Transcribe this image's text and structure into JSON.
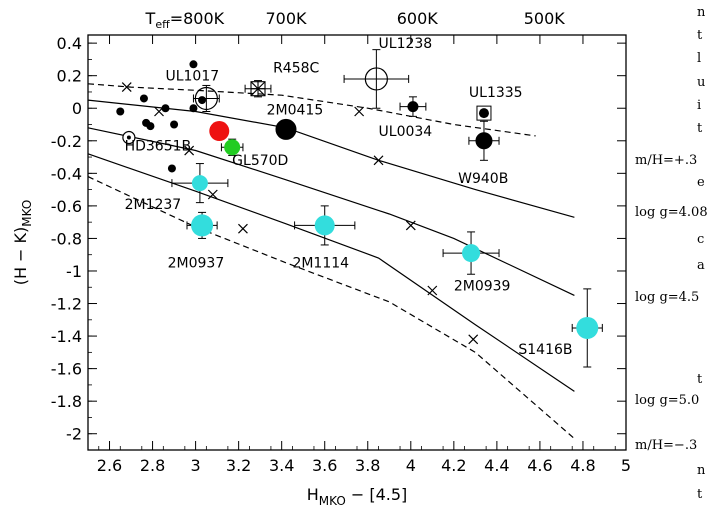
{
  "chart_data": {
    "type": "scatter",
    "xlabel": "H",
    "xlabel_sub": "MKO",
    "xlabel_tail": " − [4.5]",
    "ylabel": "(H − K)",
    "ylabel_sub": "MKO",
    "xlim": [
      2.5,
      5.0
    ],
    "ylim": [
      -2.1,
      0.45
    ],
    "x_ticks": [
      2.6,
      2.8,
      3.0,
      3.2,
      3.4,
      3.6,
      3.8,
      4.0,
      4.2,
      4.4,
      4.6,
      4.8,
      5.0
    ],
    "x_tick_labels": [
      "2.6",
      "2.8",
      "3",
      "3.2",
      "3.4",
      "3.6",
      "3.8",
      "4",
      "4.2",
      "4.4",
      "4.6",
      "4.8",
      "5"
    ],
    "y_ticks": [
      0.4,
      0.2,
      0,
      -0.2,
      -0.4,
      -0.6,
      -0.8,
      -1,
      -1.2,
      -1.4,
      -1.6,
      -1.8,
      -2
    ],
    "y_tick_labels": [
      "0.4",
      "0.2",
      "0",
      "-0.2",
      "-0.4",
      "-0.6",
      "-0.8",
      "-1",
      "-1.2",
      "-1.4",
      "-1.6",
      "-1.8",
      "-2"
    ],
    "top_axis": {
      "label_main": "T",
      "label_sub": "eff",
      "label_tail": "=800K",
      "ticks": [
        {
          "label": "700K",
          "x": 3.42
        },
        {
          "label": "600K",
          "x": 4.03
        },
        {
          "label": "500K",
          "x": 4.62
        }
      ],
      "first_label_x": 2.95
    },
    "model_curves": [
      {
        "style": "dashed",
        "points": [
          [
            2.5,
            0.15
          ],
          [
            2.7,
            0.13
          ],
          [
            3.0,
            0.11
          ],
          [
            3.4,
            0.08
          ],
          [
            3.8,
            0.0
          ],
          [
            4.2,
            -0.1
          ],
          [
            4.58,
            -0.17
          ]
        ]
      },
      {
        "style": "solid",
        "points": [
          [
            2.5,
            0.05
          ],
          [
            3.0,
            -0.02
          ],
          [
            3.42,
            -0.12
          ],
          [
            3.85,
            -0.32
          ],
          [
            4.3,
            -0.5
          ],
          [
            4.76,
            -0.67
          ]
        ]
      },
      {
        "style": "solid",
        "points": [
          [
            2.5,
            -0.12
          ],
          [
            3.0,
            -0.26
          ],
          [
            3.42,
            -0.44
          ],
          [
            3.9,
            -0.65
          ],
          [
            4.2,
            -0.8
          ],
          [
            4.76,
            -1.15
          ]
        ]
      },
      {
        "style": "solid",
        "points": [
          [
            2.5,
            -0.28
          ],
          [
            3.0,
            -0.51
          ],
          [
            3.42,
            -0.71
          ],
          [
            3.85,
            -0.92
          ],
          [
            4.3,
            -1.33
          ],
          [
            4.76,
            -1.74
          ]
        ]
      },
      {
        "style": "dashed",
        "points": [
          [
            2.5,
            -0.42
          ],
          [
            3.0,
            -0.73
          ],
          [
            3.42,
            -0.95
          ],
          [
            3.9,
            -1.19
          ],
          [
            4.3,
            -1.5
          ],
          [
            4.76,
            -2.03
          ]
        ]
      }
    ],
    "model_markers": [
      [
        2.68,
        0.13
      ],
      [
        2.83,
        -0.02
      ],
      [
        2.97,
        -0.26
      ],
      [
        3.08,
        -0.53
      ],
      [
        3.22,
        -0.74
      ],
      [
        3.76,
        -0.02
      ],
      [
        3.85,
        -0.32
      ],
      [
        4.0,
        -0.72
      ],
      [
        4.1,
        -1.12
      ],
      [
        4.29,
        -1.42
      ]
    ],
    "field_dots": [
      [
        2.65,
        -0.02
      ],
      [
        2.76,
        0.06
      ],
      [
        2.77,
        -0.09
      ],
      [
        2.79,
        -0.11
      ],
      [
        2.86,
        0.0
      ],
      [
        2.9,
        -0.1
      ],
      [
        2.89,
        -0.37
      ],
      [
        2.99,
        0.27
      ],
      [
        2.99,
        0.0
      ],
      [
        3.03,
        0.05
      ],
      [
        3.1,
        -0.13
      ]
    ],
    "objects": [
      {
        "name": "UL1017",
        "x": 3.05,
        "y": 0.06,
        "xerr": 0.06,
        "yerr": 0.08,
        "marker": "open-circle-large",
        "size": 11,
        "color": "#000000"
      },
      {
        "name": "HD3651B",
        "x": 2.69,
        "y": -0.18,
        "xerr": 0.0,
        "yerr": 0.0,
        "marker": "open-circle-dot",
        "size": 6,
        "color": "#000000"
      },
      {
        "name": "R458C",
        "x": 3.29,
        "y": 0.12,
        "xerr": 0.06,
        "yerr": 0.05,
        "marker": "asterisk-square",
        "size": 7,
        "color": "#000000"
      },
      {
        "name": "2M0415",
        "x": 3.42,
        "y": -0.13,
        "xerr": 0.04,
        "yerr": 0.03,
        "marker": "filled-circle",
        "size": 10,
        "color": "#000000"
      },
      {
        "name": "GL570D",
        "x": 3.17,
        "y": -0.24,
        "xerr": 0.05,
        "yerr": 0.05,
        "marker": "filled-circle",
        "size": 8,
        "color": "#22cc22"
      },
      {
        "name": "",
        "x": 3.11,
        "y": -0.14,
        "xerr": 0.04,
        "yerr": 0.05,
        "marker": "filled-circle",
        "size": 10,
        "color": "#ee1111"
      },
      {
        "name": "UL1238",
        "x": 3.84,
        "y": 0.18,
        "xerr": 0.15,
        "yerr": 0.18,
        "marker": "open-circle-large",
        "size": 11,
        "color": "#000000"
      },
      {
        "name": "UL0034",
        "x": 4.01,
        "y": 0.01,
        "xerr": 0.06,
        "yerr": 0.06,
        "marker": "filled-circle-small",
        "size": 5,
        "color": "#000000"
      },
      {
        "name": "UL1335",
        "x": 4.34,
        "y": -0.03,
        "xerr": 0.0,
        "yerr": 0.0,
        "marker": "filled-circle-square",
        "size": 5,
        "color": "#000000"
      },
      {
        "name": "W940B",
        "x": 4.34,
        "y": -0.2,
        "xerr": 0.07,
        "yerr": 0.12,
        "marker": "filled-circle",
        "size": 8,
        "color": "#000000"
      },
      {
        "name": "2M1237",
        "x": 3.02,
        "y": -0.46,
        "xerr": 0.13,
        "yerr": 0.12,
        "marker": "filled-circle",
        "size": 8,
        "color": "#33dddd"
      },
      {
        "name": "2M0937",
        "x": 3.03,
        "y": -0.72,
        "xerr": 0.07,
        "yerr": 0.08,
        "marker": "filled-circle",
        "size": 11,
        "color": "#33dddd"
      },
      {
        "name": "2M1114",
        "x": 3.6,
        "y": -0.72,
        "xerr": 0.14,
        "yerr": 0.12,
        "marker": "filled-circle",
        "size": 10,
        "color": "#33dddd"
      },
      {
        "name": "2M0939",
        "x": 4.28,
        "y": -0.89,
        "xerr": 0.13,
        "yerr": 0.13,
        "marker": "filled-circle",
        "size": 9,
        "color": "#33dddd"
      },
      {
        "name": "S1416B",
        "x": 4.82,
        "y": -1.35,
        "xerr": 0.07,
        "yerr": 0.24,
        "marker": "filled-circle",
        "size": 11,
        "color": "#33dddd"
      }
    ],
    "annotations": [
      {
        "text": "UL1017",
        "x": 2.86,
        "y": 0.17
      },
      {
        "text": "R458C",
        "x": 3.36,
        "y": 0.22
      },
      {
        "text": "UL1238",
        "x": 3.85,
        "y": 0.37
      },
      {
        "text": "UL1335",
        "x": 4.27,
        "y": 0.07
      },
      {
        "text": "2M0415",
        "x": 3.33,
        "y": -0.04
      },
      {
        "text": "UL0034",
        "x": 3.85,
        "y": -0.17
      },
      {
        "text": "HD3651B",
        "x": 2.67,
        "y": -0.26
      },
      {
        "text": "GL570D",
        "x": 3.17,
        "y": -0.35
      },
      {
        "text": "W940B",
        "x": 4.22,
        "y": -0.46
      },
      {
        "text": "2M1237",
        "x": 2.67,
        "y": -0.62
      },
      {
        "text": "2M0937",
        "x": 2.87,
        "y": -0.98
      },
      {
        "text": "2M1114",
        "x": 3.45,
        "y": -0.98
      },
      {
        "text": "2M0939",
        "x": 4.2,
        "y": -1.12
      },
      {
        "text": "S1416B",
        "x": 4.5,
        "y": -1.51
      }
    ]
  },
  "side_text": {
    "mh_plus": "m/H=+.3",
    "logg_408": "log g=4.08",
    "logg_45": "log g=4.5",
    "logg_50": "log g=5.0",
    "mh_minus": "m/H=−.3",
    "fragments": [
      "n",
      "t",
      "l",
      "u",
      "i",
      "t",
      "e",
      "c",
      "a",
      "t",
      "n",
      "t"
    ]
  }
}
